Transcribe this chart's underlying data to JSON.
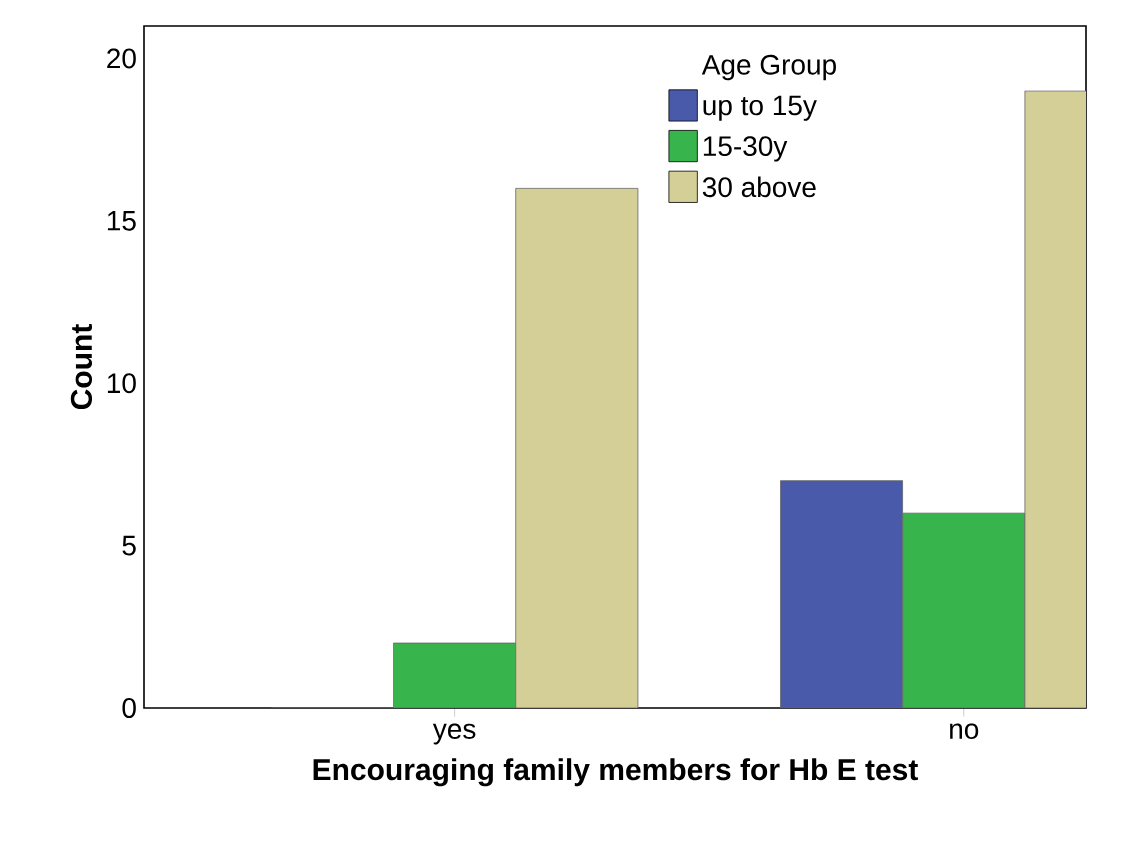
{
  "chart_data": {
    "type": "bar",
    "xlabel": "Encouraging family members for Hb E test",
    "ylabel": "Count",
    "legend_title": "Age Group",
    "categories": [
      "yes",
      "no"
    ],
    "series": [
      {
        "name": "up to 15y",
        "color": "#4a5aaa",
        "values": [
          0,
          7
        ]
      },
      {
        "name": "15-30y",
        "color": "#37b44b",
        "values": [
          2,
          6
        ]
      },
      {
        "name": "30 above",
        "color": "#d4cf96",
        "values": [
          16,
          19
        ]
      }
    ],
    "ylim": [
      0,
      21
    ],
    "yticks": [
      0,
      5,
      10,
      15,
      20
    ],
    "grid": false,
    "legend": "top right"
  }
}
